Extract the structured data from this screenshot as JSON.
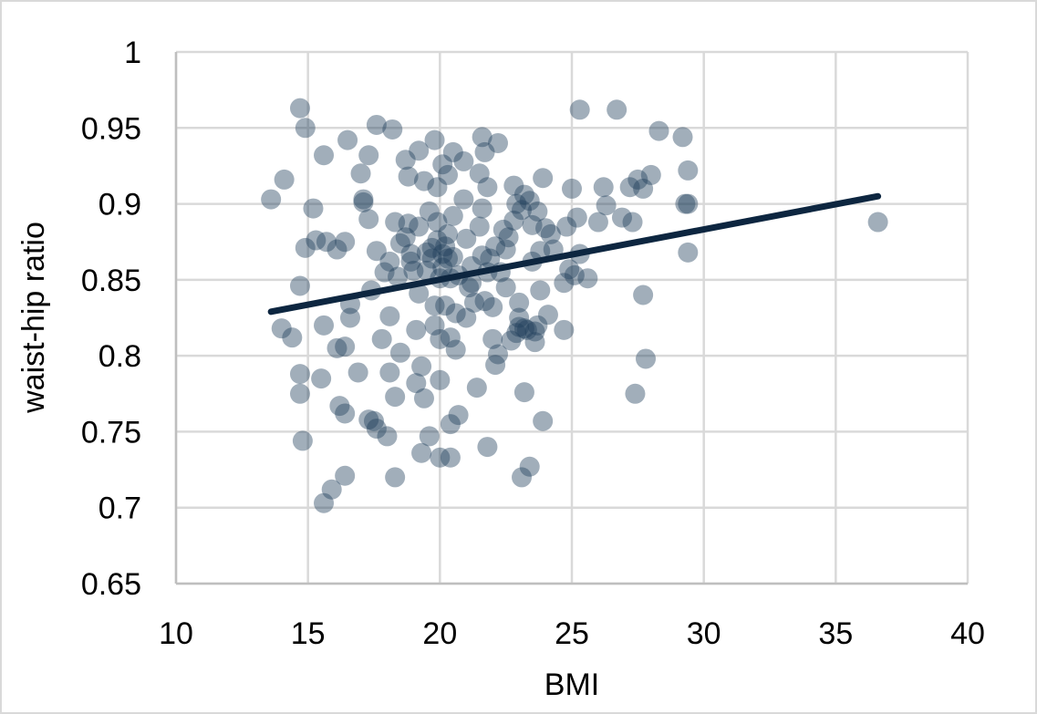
{
  "chart_data": {
    "type": "scatter",
    "title": "",
    "xlabel": "BMI",
    "ylabel": "waist-hip ratio",
    "xlim": [
      10,
      40
    ],
    "ylim": [
      0.65,
      1
    ],
    "x_ticks": [
      "10",
      "15",
      "20",
      "25",
      "30",
      "35",
      "40"
    ],
    "y_ticks": [
      "0.65",
      "0.7",
      "0.75",
      "0.8",
      "0.85",
      "0.9",
      "0.95",
      "1"
    ],
    "grid": true,
    "legend": null,
    "marker_color": "#1f3d5a",
    "marker_opacity": 0.42,
    "trendline": {
      "type": "linear",
      "color": "#0d2640",
      "x": [
        13.6,
        36.6
      ],
      "y": [
        0.829,
        0.905
      ]
    },
    "series": [
      {
        "name": "waist-hip ratio",
        "points": [
          [
            13.6,
            0.903
          ],
          [
            14.1,
            0.916
          ],
          [
            14.0,
            0.818
          ],
          [
            14.4,
            0.812
          ],
          [
            14.7,
            0.963
          ],
          [
            14.9,
            0.95
          ],
          [
            14.7,
            0.846
          ],
          [
            14.9,
            0.871
          ],
          [
            14.7,
            0.788
          ],
          [
            14.7,
            0.775
          ],
          [
            14.8,
            0.744
          ],
          [
            15.2,
            0.897
          ],
          [
            15.3,
            0.876
          ],
          [
            15.5,
            0.785
          ],
          [
            15.6,
            0.932
          ],
          [
            15.7,
            0.875
          ],
          [
            15.6,
            0.82
          ],
          [
            15.6,
            0.703
          ],
          [
            15.9,
            0.712
          ],
          [
            16.1,
            0.87
          ],
          [
            16.1,
            0.805
          ],
          [
            16.2,
            0.767
          ],
          [
            16.4,
            0.875
          ],
          [
            16.5,
            0.942
          ],
          [
            16.4,
            0.806
          ],
          [
            16.4,
            0.762
          ],
          [
            16.4,
            0.721
          ],
          [
            16.6,
            0.834
          ],
          [
            16.6,
            0.825
          ],
          [
            16.9,
            0.789
          ],
          [
            17.0,
            0.92
          ],
          [
            17.1,
            0.903
          ],
          [
            17.1,
            0.901
          ],
          [
            17.3,
            0.932
          ],
          [
            17.3,
            0.89
          ],
          [
            17.4,
            0.843
          ],
          [
            17.3,
            0.758
          ],
          [
            17.5,
            0.757
          ],
          [
            17.6,
            0.752
          ],
          [
            17.6,
            0.869
          ],
          [
            17.6,
            0.952
          ],
          [
            17.9,
            0.855
          ],
          [
            17.8,
            0.811
          ],
          [
            18.0,
            0.747
          ],
          [
            18.1,
            0.862
          ],
          [
            18.1,
            0.826
          ],
          [
            18.1,
            0.789
          ],
          [
            18.2,
            0.949
          ],
          [
            18.3,
            0.773
          ],
          [
            18.3,
            0.72
          ],
          [
            18.3,
            0.888
          ],
          [
            18.4,
            0.852
          ],
          [
            18.5,
            0.874
          ],
          [
            18.5,
            0.802
          ],
          [
            18.7,
            0.929
          ],
          [
            18.7,
            0.878
          ],
          [
            18.8,
            0.918
          ],
          [
            18.8,
            0.887
          ],
          [
            18.9,
            0.867
          ],
          [
            18.9,
            0.862
          ],
          [
            19.0,
            0.856
          ],
          [
            19.1,
            0.817
          ],
          [
            19.1,
            0.782
          ],
          [
            19.2,
            0.935
          ],
          [
            19.2,
            0.885
          ],
          [
            19.2,
            0.841
          ],
          [
            19.3,
            0.736
          ],
          [
            19.3,
            0.793
          ],
          [
            19.4,
            0.772
          ],
          [
            19.4,
            0.915
          ],
          [
            19.5,
            0.868
          ],
          [
            19.5,
            0.856
          ],
          [
            19.6,
            0.747
          ],
          [
            19.6,
            0.895
          ],
          [
            19.7,
            0.871
          ],
          [
            19.7,
            0.864
          ],
          [
            19.8,
            0.942
          ],
          [
            19.8,
            0.833
          ],
          [
            19.8,
            0.82
          ],
          [
            19.9,
            0.911
          ],
          [
            19.9,
            0.888
          ],
          [
            19.9,
            0.876
          ],
          [
            20.0,
            0.851
          ],
          [
            20.0,
            0.784
          ],
          [
            20.0,
            0.811
          ],
          [
            20.0,
            0.733
          ],
          [
            20.1,
            0.926
          ],
          [
            20.1,
            0.867
          ],
          [
            20.1,
            0.858
          ],
          [
            20.2,
            0.872
          ],
          [
            20.2,
            0.833
          ],
          [
            20.3,
            0.919
          ],
          [
            20.3,
            0.88
          ],
          [
            20.3,
            0.864
          ],
          [
            20.4,
            0.851
          ],
          [
            20.4,
            0.812
          ],
          [
            20.4,
            0.733
          ],
          [
            20.4,
            0.755
          ],
          [
            20.5,
            0.934
          ],
          [
            20.5,
            0.892
          ],
          [
            20.5,
            0.865
          ],
          [
            20.6,
            0.804
          ],
          [
            20.6,
            0.828
          ],
          [
            20.7,
            0.761
          ],
          [
            20.7,
            0.853
          ],
          [
            20.9,
            0.928
          ],
          [
            20.9,
            0.903
          ],
          [
            21.0,
            0.877
          ],
          [
            21.0,
            0.825
          ],
          [
            21.1,
            0.845
          ],
          [
            21.2,
            0.859
          ],
          [
            21.2,
            0.848
          ],
          [
            21.3,
            0.835
          ],
          [
            21.4,
            0.779
          ],
          [
            21.5,
            0.885
          ],
          [
            21.5,
            0.92
          ],
          [
            21.6,
            0.944
          ],
          [
            21.6,
            0.897
          ],
          [
            21.6,
            0.866
          ],
          [
            21.7,
            0.836
          ],
          [
            21.7,
            0.934
          ],
          [
            21.8,
            0.911
          ],
          [
            21.8,
            0.855
          ],
          [
            21.8,
            0.74
          ],
          [
            21.9,
            0.864
          ],
          [
            22.0,
            0.832
          ],
          [
            22.0,
            0.811
          ],
          [
            22.1,
            0.872
          ],
          [
            22.1,
            0.794
          ],
          [
            22.2,
            0.94
          ],
          [
            22.2,
            0.801
          ],
          [
            22.3,
            0.855
          ],
          [
            22.4,
            0.883
          ],
          [
            22.5,
            0.87
          ],
          [
            22.5,
            0.845
          ],
          [
            22.6,
            0.878
          ],
          [
            22.7,
            0.81
          ],
          [
            22.8,
            0.912
          ],
          [
            22.8,
            0.889
          ],
          [
            22.9,
            0.815
          ],
          [
            22.9,
            0.9
          ],
          [
            23.0,
            0.835
          ],
          [
            23.0,
            0.825
          ],
          [
            23.0,
            0.819
          ],
          [
            23.1,
            0.896
          ],
          [
            23.1,
            0.72
          ],
          [
            23.2,
            0.906
          ],
          [
            23.2,
            0.818
          ],
          [
            23.2,
            0.776
          ],
          [
            23.3,
            0.817
          ],
          [
            23.4,
            0.727
          ],
          [
            23.4,
            0.902
          ],
          [
            23.5,
            0.886
          ],
          [
            23.5,
            0.862
          ],
          [
            23.6,
            0.816
          ],
          [
            23.6,
            0.809
          ],
          [
            23.7,
            0.895
          ],
          [
            23.7,
            0.82
          ],
          [
            23.8,
            0.843
          ],
          [
            23.8,
            0.869
          ],
          [
            23.9,
            0.917
          ],
          [
            23.9,
            0.757
          ],
          [
            24.0,
            0.884
          ],
          [
            24.1,
            0.827
          ],
          [
            24.2,
            0.88
          ],
          [
            24.3,
            0.87
          ],
          [
            24.7,
            0.848
          ],
          [
            24.7,
            0.817
          ],
          [
            24.8,
            0.885
          ],
          [
            24.9,
            0.857
          ],
          [
            25.0,
            0.91
          ],
          [
            25.1,
            0.853
          ],
          [
            25.2,
            0.891
          ],
          [
            25.3,
            0.867
          ],
          [
            25.3,
            0.962
          ],
          [
            25.6,
            0.851
          ],
          [
            26.0,
            0.888
          ],
          [
            26.2,
            0.911
          ],
          [
            26.3,
            0.899
          ],
          [
            26.7,
            0.962
          ],
          [
            26.9,
            0.891
          ],
          [
            27.2,
            0.911
          ],
          [
            27.3,
            0.888
          ],
          [
            27.4,
            0.775
          ],
          [
            27.5,
            0.916
          ],
          [
            27.7,
            0.84
          ],
          [
            27.7,
            0.91
          ],
          [
            27.8,
            0.798
          ],
          [
            28.0,
            0.919
          ],
          [
            28.3,
            0.948
          ],
          [
            29.2,
            0.944
          ],
          [
            29.3,
            0.9
          ],
          [
            29.4,
            0.922
          ],
          [
            29.4,
            0.868
          ],
          [
            29.4,
            0.9
          ],
          [
            36.6,
            0.888
          ]
        ]
      }
    ]
  }
}
